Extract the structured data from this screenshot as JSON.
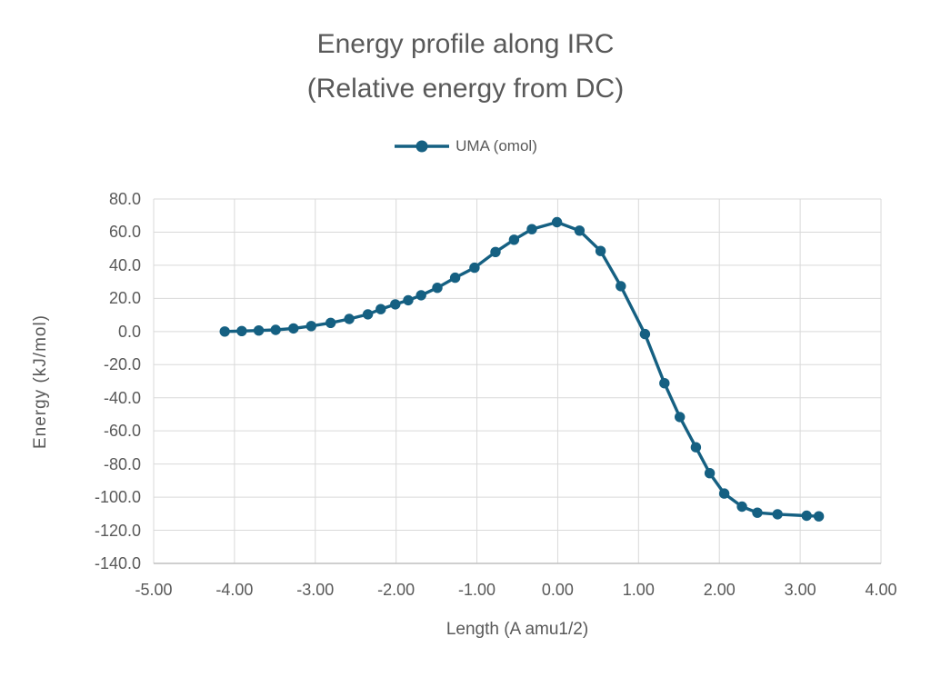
{
  "chart": {
    "title_line1": "Energy profile along IRC",
    "title_line2": "(Relative energy from DC)",
    "legend_label": "UMA (omol)",
    "x_axis_title": "Length (A amu1/2)",
    "y_axis_title": "Energy (kJ/mol)"
  },
  "colors": {
    "series": "#156082",
    "grid": "#d9d9d9",
    "axis": "#bfbfbf",
    "text": "#595959",
    "background": "#ffffff"
  },
  "chart_data": {
    "type": "line",
    "title": "Energy profile along IRC (Relative energy from DC)",
    "xlabel": "Length (A amu1/2)",
    "ylabel": "Energy (kJ/mol)",
    "xlim": [
      -5,
      4
    ],
    "ylim": [
      -140,
      80
    ],
    "grid": true,
    "legend_position": "top-center",
    "x_ticks": [
      -5,
      -4,
      -3,
      -2,
      -1,
      0,
      1,
      2,
      3,
      4
    ],
    "x_tick_labels": [
      "-5.00",
      "-4.00",
      "-3.00",
      "-2.00",
      "-1.00",
      "0.00",
      "1.00",
      "2.00",
      "3.00",
      "4.00"
    ],
    "y_ticks": [
      80,
      60,
      40,
      20,
      0,
      -20,
      -40,
      -60,
      -80,
      -100,
      -120,
      -140
    ],
    "y_tick_labels": [
      "80.0",
      "60.0",
      "40.0",
      "20.0",
      "0.0",
      "-20.0",
      "-40.0",
      "-60.0",
      "-80.0",
      "-100.0",
      "-120.0",
      "-140.0"
    ],
    "series": [
      {
        "name": "UMA (omol)",
        "color": "#156082",
        "marker": "circle",
        "points": [
          [
            -4.12,
            0.0
          ],
          [
            -3.91,
            0.3
          ],
          [
            -3.7,
            0.6
          ],
          [
            -3.49,
            1.0
          ],
          [
            -3.27,
            1.9
          ],
          [
            -3.05,
            3.3
          ],
          [
            -2.81,
            5.2
          ],
          [
            -2.58,
            7.6
          ],
          [
            -2.35,
            10.4
          ],
          [
            -2.19,
            13.5
          ],
          [
            -2.01,
            16.4
          ],
          [
            -1.85,
            18.9
          ],
          [
            -1.69,
            21.9
          ],
          [
            -1.49,
            26.4
          ],
          [
            -1.27,
            32.5
          ],
          [
            -1.03,
            38.5
          ],
          [
            -0.77,
            48.0
          ],
          [
            -0.54,
            55.4
          ],
          [
            -0.32,
            61.8
          ],
          [
            -0.01,
            66.0
          ],
          [
            0.27,
            60.9
          ],
          [
            0.53,
            48.6
          ],
          [
            0.78,
            27.4
          ],
          [
            1.08,
            -1.5
          ],
          [
            1.32,
            -31.2
          ],
          [
            1.51,
            -51.6
          ],
          [
            1.71,
            -69.9
          ],
          [
            1.88,
            -85.5
          ],
          [
            2.06,
            -97.8
          ],
          [
            2.28,
            -105.7
          ],
          [
            2.47,
            -109.4
          ],
          [
            2.72,
            -110.3
          ],
          [
            3.08,
            -111.2
          ],
          [
            3.23,
            -111.6
          ]
        ]
      }
    ]
  }
}
